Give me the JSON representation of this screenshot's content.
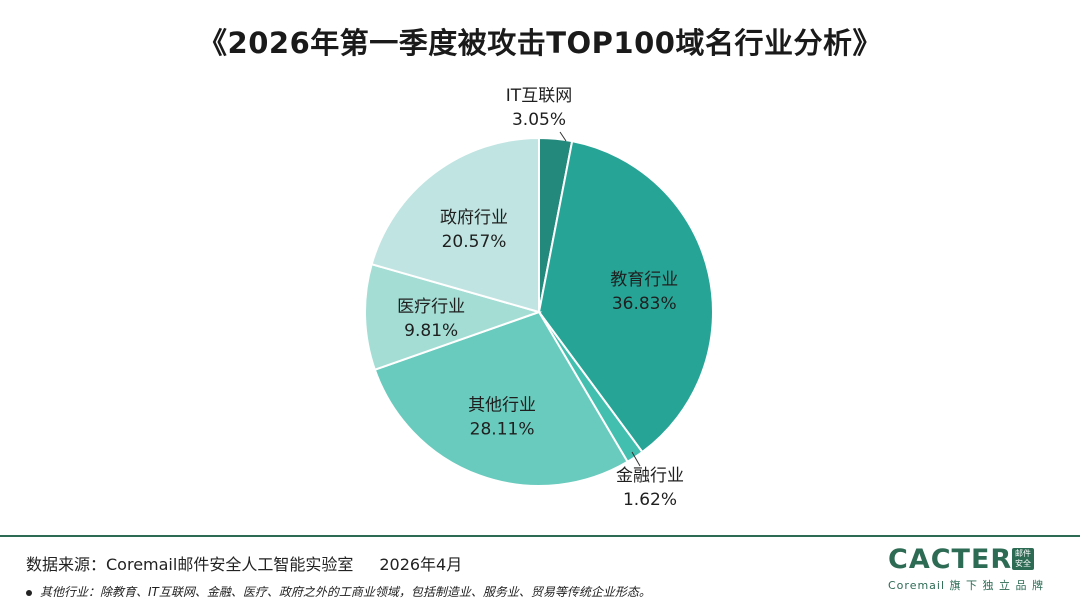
{
  "title": "《2026年第一季度被攻击TOP100域名行业分析》",
  "chart_data": {
    "type": "pie",
    "title": "《2026年第一季度被攻击TOP100域名行业分析》",
    "start": "12 o'clock, clockwise",
    "slices": [
      {
        "label": "IT互联网",
        "value": 3.05,
        "display": "3.05%",
        "color": "#22897c",
        "label_position": "outside-top"
      },
      {
        "label": "教育行业",
        "value": 36.83,
        "display": "36.83%",
        "color": "#26a597",
        "label_position": "inside"
      },
      {
        "label": "金融行业",
        "value": 1.62,
        "display": "1.62%",
        "color": "#43bfb0",
        "label_position": "outside-bottom-right"
      },
      {
        "label": "其他行业",
        "value": 28.11,
        "display": "28.11%",
        "color": "#69cbbd",
        "label_position": "inside"
      },
      {
        "label": "医疗行业",
        "value": 9.81,
        "display": "9.81%",
        "color": "#a3ddd4",
        "label_position": "inside"
      },
      {
        "label": "政府行业",
        "value": 20.57,
        "display": "20.57%",
        "color": "#bfe4e1",
        "label_position": "inside"
      }
    ]
  },
  "footer": {
    "source": "数据来源：Coremail邮件安全人工智能实验室",
    "date": "2026年4月",
    "note": "其他行业：除教育、IT互联网、金融、医疗、政府之外的工商业领域，包括制造业、服务业、贸易等传统企业形态。"
  },
  "brand": {
    "name": "CACTER",
    "badge": "邮件安全",
    "tagline": "Coremail 旗 下 独 立 品 牌",
    "color": "#2e6b55"
  }
}
